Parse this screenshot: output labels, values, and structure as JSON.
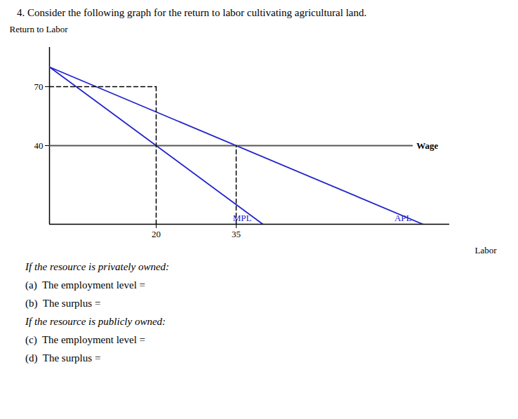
{
  "chart_data": {
    "type": "line",
    "title": "4. Consider the following graph for the return to labor cultivating agricultural land.",
    "xlabel": "Labor",
    "ylabel": "Return to Labor",
    "xlim": [
      0,
      75
    ],
    "ylim": [
      0,
      90
    ],
    "xticks": [
      20,
      35
    ],
    "yticks": [
      40,
      70
    ],
    "grid": false,
    "series": [
      {
        "name": "MPL",
        "color": "#2222cc",
        "line_style": "solid",
        "x": [
          0,
          40
        ],
        "values": [
          80,
          0
        ]
      },
      {
        "name": "APL",
        "color": "#2222cc",
        "line_style": "solid",
        "x": [
          0,
          70
        ],
        "values": [
          80,
          0
        ]
      },
      {
        "name": "Wage",
        "color": "#555555",
        "line_style": "solid",
        "x": [
          0,
          68
        ],
        "values": [
          40,
          40
        ]
      },
      {
        "color": "black",
        "line_style": "dashed",
        "x": [
          0,
          20
        ],
        "values": [
          70,
          70
        ]
      },
      {
        "color": "black",
        "line_style": "dashed",
        "x": [
          20,
          20
        ],
        "values": [
          0,
          70
        ]
      },
      {
        "color": "black",
        "line_style": "dashed",
        "x": [
          35,
          35
        ],
        "values": [
          0,
          40
        ]
      }
    ],
    "annotations": [
      "If the resource is privately owned:",
      "(a)  The employment level =",
      "(b)  The surplus =",
      "If the resource is publicly owned:",
      "(c)  The employment level =",
      "(d)  The surplus ="
    ]
  }
}
